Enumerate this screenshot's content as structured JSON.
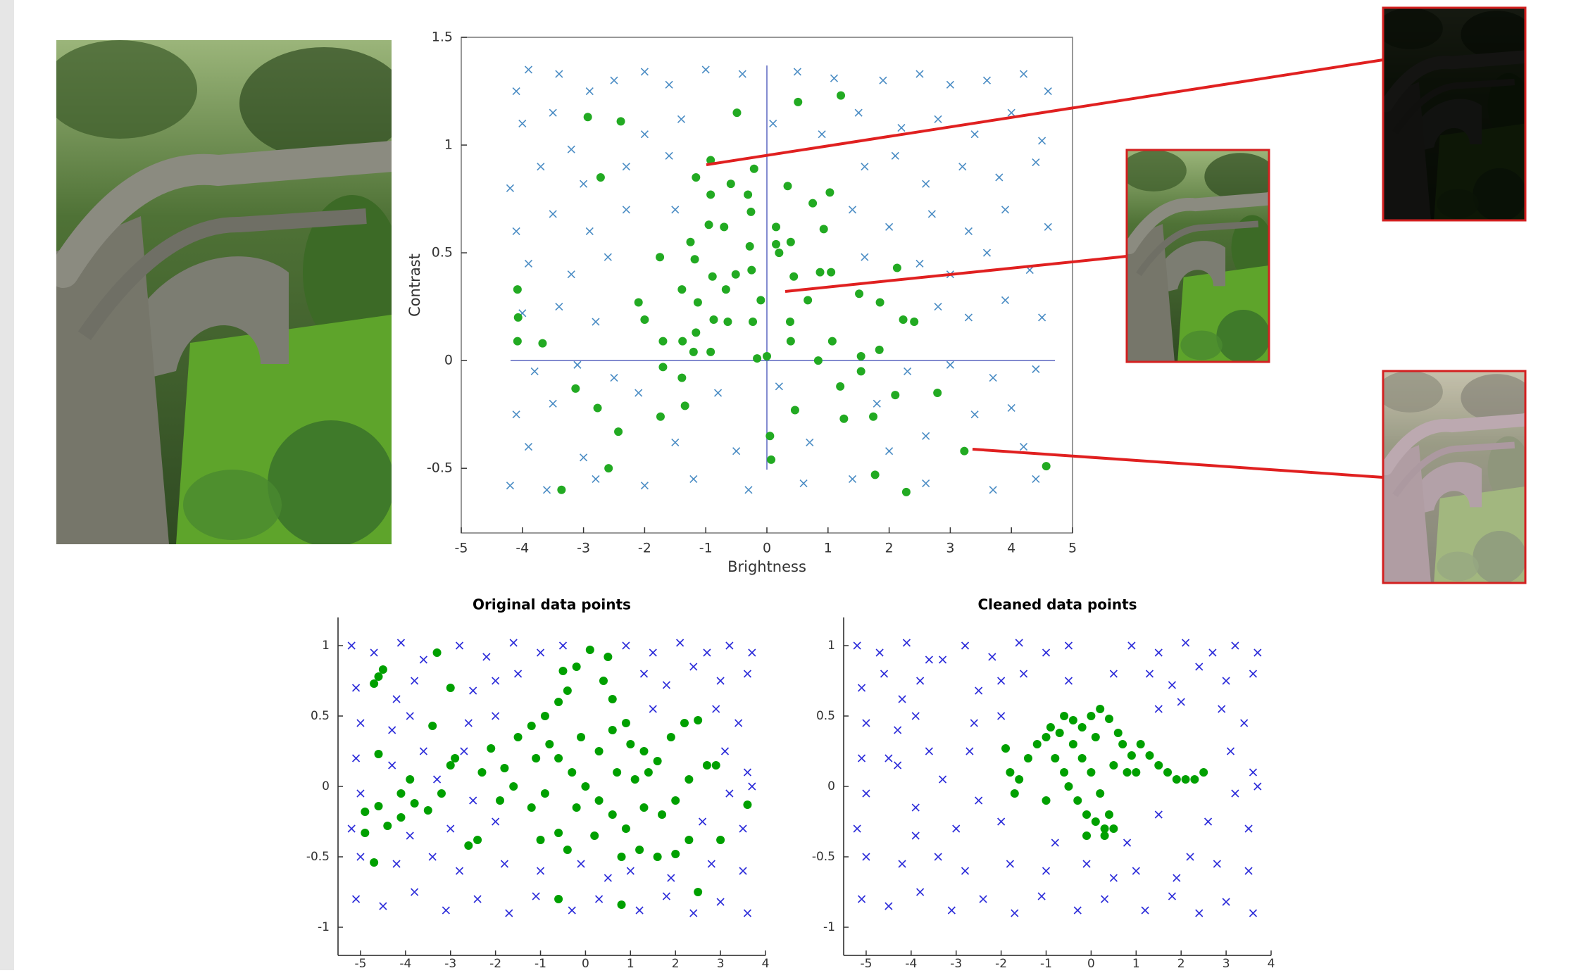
{
  "chart_data": [
    {
      "type": "scatter",
      "xlabel": "Brightness",
      "ylabel": "Contrast",
      "xlim": [
        -5,
        5
      ],
      "ylim": [
        -0.8,
        1.5
      ],
      "xticks": [
        -5,
        -4,
        -3,
        -2,
        -1,
        0,
        1,
        2,
        3,
        4,
        5
      ],
      "yticks": [
        -0.5,
        0,
        0.5,
        1,
        1.5
      ],
      "zero_lines": true,
      "box": true,
      "series": [
        {
          "marker": "x",
          "color": "#4a8cc4",
          "x": [
            -4.1,
            -3.9,
            -3.4,
            -2.9,
            -2.5,
            -2,
            -1.6,
            -1,
            -0.4,
            0.5,
            1.1,
            1.9,
            2.5,
            3,
            3.6,
            4.2,
            4.6,
            -4,
            -3.5,
            -3.2,
            -2,
            -1.4,
            0.1,
            0.9,
            1.5,
            2.2,
            2.8,
            3.4,
            4,
            4.5,
            -4.2,
            -3.7,
            -3,
            -2.3,
            -1.6,
            1.6,
            2.1,
            2.6,
            3.2,
            3.8,
            4.4,
            -4.1,
            -3.5,
            -2.9,
            -2.3,
            -1.5,
            1.4,
            2,
            2.7,
            3.3,
            3.9,
            4.6,
            -3.9,
            -3.2,
            -2.6,
            1.6,
            2.5,
            3,
            3.6,
            4.3,
            -4,
            -3.4,
            -2.8,
            2.8,
            3.3,
            3.9,
            4.5,
            -3.8,
            -3.1,
            -2.5,
            2.3,
            3,
            3.7,
            4.4,
            -4.1,
            -3.5,
            -2.1,
            -0.8,
            0.2,
            1.8,
            3.4,
            4,
            -3.9,
            -3,
            -1.5,
            -0.5,
            0.7,
            2,
            2.6,
            4.2,
            -4.2,
            -3.6,
            -2.8,
            -2,
            -1.2,
            -0.3,
            0.6,
            1.4,
            2.6,
            3.7,
            4.4
          ],
          "values": [
            1.25,
            1.35,
            1.33,
            1.25,
            1.3,
            1.34,
            1.28,
            1.35,
            1.33,
            1.34,
            1.31,
            1.3,
            1.33,
            1.28,
            1.3,
            1.33,
            1.25,
            1.1,
            1.15,
            0.98,
            1.05,
            1.12,
            1.1,
            1.05,
            1.15,
            1.08,
            1.12,
            1.05,
            1.15,
            1.02,
            0.8,
            0.9,
            0.82,
            0.9,
            0.95,
            0.9,
            0.95,
            0.82,
            0.9,
            0.85,
            0.92,
            0.6,
            0.68,
            0.6,
            0.7,
            0.7,
            0.7,
            0.62,
            0.68,
            0.6,
            0.7,
            0.62,
            0.45,
            0.4,
            0.48,
            0.48,
            0.45,
            0.4,
            0.5,
            0.42,
            0.22,
            0.25,
            0.18,
            0.25,
            0.2,
            0.28,
            0.2,
            -0.05,
            -0.02,
            -0.08,
            -0.05,
            -0.02,
            -0.08,
            -0.04,
            -0.25,
            -0.2,
            -0.15,
            -0.15,
            -0.12,
            -0.2,
            -0.25,
            -0.22,
            -0.4,
            -0.45,
            -0.38,
            -0.42,
            -0.38,
            -0.42,
            -0.35,
            -0.4,
            -0.58,
            -0.6,
            -0.55,
            -0.58,
            -0.55,
            -0.6,
            -0.57,
            -0.55,
            -0.57,
            -0.6,
            -0.55
          ]
        },
        {
          "marker": "o",
          "color": "#22aa22",
          "x": [
            -0.92,
            -1.16,
            -2.93,
            -2.39,
            -0.49,
            0.51,
            1.21,
            -2.72,
            -0.21,
            -0.59,
            0.34,
            -0.92,
            1.03,
            -0.31,
            0.75,
            -0.95,
            -0.7,
            -0.26,
            0.15,
            -1.25,
            0.15,
            0.39,
            0.93,
            -1.75,
            -1.18,
            -0.28,
            0.2,
            -0.89,
            -0.51,
            -0.25,
            0.87,
            1.05,
            2.13,
            0.44,
            -1.39,
            -0.67,
            -4.08,
            -2.1,
            -1.13,
            -0.1,
            0.67,
            1.51,
            1.85,
            -4.07,
            -2,
            -0.87,
            -0.64,
            -0.23,
            0.38,
            2.23,
            2.41,
            -1.16,
            -4.08,
            -3.67,
            -1.7,
            -1.38,
            0.39,
            1.07,
            1.84,
            -1.2,
            -0.92,
            -0.16,
            0,
            0.84,
            1.54,
            -1.7,
            1.54,
            -1.39,
            -3.13,
            1.2,
            2.1,
            2.79,
            -2.77,
            -1.34,
            0.46,
            -1.74,
            1.26,
            1.74,
            -2.43,
            0.05,
            0.07,
            3.23,
            -2.59,
            1.77,
            4.57,
            -3.36,
            2.28
          ],
          "values": [
            0.93,
            0.85,
            1.13,
            1.11,
            1.15,
            1.2,
            1.23,
            0.85,
            0.89,
            0.82,
            0.81,
            0.77,
            0.78,
            0.77,
            0.73,
            0.63,
            0.62,
            0.69,
            0.62,
            0.55,
            0.54,
            0.55,
            0.61,
            0.48,
            0.47,
            0.53,
            0.5,
            0.39,
            0.4,
            0.42,
            0.41,
            0.41,
            0.43,
            0.39,
            0.33,
            0.33,
            0.33,
            0.27,
            0.27,
            0.28,
            0.28,
            0.31,
            0.27,
            0.2,
            0.19,
            0.19,
            0.18,
            0.18,
            0.18,
            0.19,
            0.18,
            0.13,
            0.09,
            0.08,
            0.09,
            0.09,
            0.09,
            0.09,
            0.05,
            0.04,
            0.04,
            0.01,
            0.02,
            0,
            0.02,
            -0.03,
            -0.05,
            -0.08,
            -0.13,
            -0.12,
            -0.16,
            -0.15,
            -0.22,
            -0.21,
            -0.23,
            -0.26,
            -0.27,
            -0.26,
            -0.33,
            -0.35,
            -0.46,
            -0.42,
            -0.5,
            -0.53,
            -0.49,
            -0.6,
            -0.61
          ]
        }
      ]
    },
    {
      "type": "scatter",
      "title": "Original data points",
      "xlim": [
        -5.5,
        4
      ],
      "ylim": [
        -1.2,
        1.2
      ],
      "xticks": [
        -5,
        -4,
        -3,
        -2,
        -1,
        0,
        1,
        2,
        3,
        4
      ],
      "yticks": [
        -1,
        -0.5,
        0,
        0.5,
        1
      ],
      "series": [
        {
          "marker": "x",
          "color": "#2b2bd9",
          "x": [
            -5.2,
            -4.7,
            -4.1,
            -3.6,
            -2.8,
            -2.2,
            -1.6,
            -1,
            -0.5,
            0.9,
            1.5,
            2.1,
            2.7,
            3.2,
            3.7,
            -5.1,
            -4.2,
            -3.8,
            -2.5,
            -2,
            -1.5,
            1.3,
            1.8,
            2.4,
            3,
            3.6,
            -5,
            -4.3,
            -3.9,
            -2.6,
            -2,
            1.5,
            2.9,
            3.4,
            -5.1,
            -4.3,
            -3.6,
            -2.7,
            3.1,
            3.6,
            -5,
            -3.3,
            -2.5,
            3.2,
            3.7,
            -5.2,
            -3.9,
            -3,
            -2,
            2.6,
            3.5,
            -5,
            -4.2,
            -3.4,
            -2.8,
            -1.8,
            -1,
            -0.1,
            0.5,
            1,
            1.9,
            2.8,
            3.5,
            -5.1,
            -4.5,
            -3.8,
            -3.1,
            -2.4,
            -1.7,
            -1.1,
            -0.3,
            0.3,
            1.2,
            1.8,
            2.4,
            3,
            3.6
          ],
          "values": [
            1,
            0.95,
            1.02,
            0.9,
            1,
            0.92,
            1.02,
            0.95,
            1,
            1,
            0.95,
            1.02,
            0.95,
            1,
            0.95,
            0.7,
            0.62,
            0.75,
            0.68,
            0.75,
            0.8,
            0.8,
            0.72,
            0.85,
            0.75,
            0.8,
            0.45,
            0.4,
            0.5,
            0.45,
            0.5,
            0.55,
            0.55,
            0.45,
            0.2,
            0.15,
            0.25,
            0.25,
            0.25,
            0.1,
            -0.05,
            0.05,
            -0.1,
            -0.05,
            0,
            -0.3,
            -0.35,
            -0.3,
            -0.25,
            -0.25,
            -0.3,
            -0.5,
            -0.55,
            -0.5,
            -0.6,
            -0.55,
            -0.6,
            -0.55,
            -0.65,
            -0.6,
            -0.65,
            -0.55,
            -0.6,
            -0.8,
            -0.85,
            -0.75,
            -0.88,
            -0.8,
            -0.9,
            -0.78,
            -0.88,
            -0.8,
            -0.88,
            -0.78,
            -0.9,
            -0.82,
            -0.9
          ]
        },
        {
          "marker": "o",
          "color": "#00a000",
          "x": [
            -4.6,
            -4.5,
            -4.7,
            -3.3,
            -3,
            -3.4,
            -4.6,
            -3.9,
            -4.1,
            -4.6,
            -4.9,
            -4.9,
            -4.4,
            -4.1,
            -3.8,
            -3.5,
            -3.2,
            -4.7,
            -3,
            -2.9,
            -2.3,
            -2.1,
            -1.8,
            -1.6,
            -1.5,
            -1.2,
            -0.9,
            -0.6,
            -0.5,
            -0.4,
            -0.2,
            0.1,
            0.5,
            0.4,
            0.6,
            0.9,
            1,
            1.3,
            1.6,
            1.9,
            2.2,
            2.5,
            2.7,
            2.3,
            2,
            1.7,
            1.3,
            0.9,
            0.6,
            0.3,
            0,
            -0.3,
            -0.6,
            -0.9,
            -1.2,
            -1,
            -0.6,
            -0.4,
            0.2,
            0.8,
            1.2,
            1.6,
            2,
            2.3,
            3,
            2.5,
            0.8,
            -0.6,
            -2.4,
            -2.6,
            3.6,
            2.9,
            -1.9,
            0.7,
            1.1,
            -0.1,
            0.3,
            -0.8,
            -1.1,
            0.6,
            -0.2,
            1.4
          ],
          "values": [
            0.78,
            0.83,
            0.73,
            0.95,
            0.7,
            0.43,
            0.23,
            0.05,
            -0.05,
            -0.14,
            -0.18,
            -0.33,
            -0.28,
            -0.22,
            -0.12,
            -0.17,
            -0.05,
            -0.54,
            0.15,
            0.2,
            0.1,
            0.27,
            0.13,
            0,
            0.35,
            0.43,
            0.5,
            0.6,
            0.82,
            0.68,
            0.85,
            0.97,
            0.92,
            0.75,
            0.62,
            0.45,
            0.3,
            0.25,
            0.18,
            0.35,
            0.45,
            0.47,
            0.15,
            0.05,
            -0.1,
            -0.2,
            -0.15,
            -0.3,
            -0.2,
            -0.1,
            0,
            0.1,
            0.2,
            -0.05,
            -0.15,
            -0.38,
            -0.33,
            -0.45,
            -0.35,
            -0.5,
            -0.45,
            -0.5,
            -0.48,
            -0.38,
            -0.38,
            -0.75,
            -0.84,
            -0.8,
            -0.38,
            -0.42,
            -0.13,
            0.15,
            -0.1,
            0.1,
            0.05,
            0.35,
            0.25,
            0.3,
            0.2,
            0.4,
            -0.15,
            0.1
          ]
        }
      ]
    },
    {
      "type": "scatter",
      "title": "Cleaned data points",
      "xlim": [
        -5.5,
        4
      ],
      "ylim": [
        -1.2,
        1.2
      ],
      "xticks": [
        -5,
        -4,
        -3,
        -2,
        -1,
        0,
        1,
        2,
        3,
        4
      ],
      "yticks": [
        -1,
        -0.5,
        0,
        0.5,
        1
      ],
      "series": [
        {
          "marker": "x",
          "color": "#2b2bd9",
          "x": [
            -5.2,
            -4.7,
            -4.1,
            -3.6,
            -2.8,
            -2.2,
            -1.6,
            -1,
            -0.5,
            0.9,
            1.5,
            2.1,
            2.7,
            3.2,
            3.7,
            -5.1,
            -4.2,
            -3.8,
            -2.5,
            -2,
            -1.5,
            1.3,
            1.8,
            2.4,
            3,
            3.6,
            -5,
            -4.3,
            -3.9,
            -2.6,
            -2,
            1.5,
            2.9,
            3.4,
            -5.1,
            -4.3,
            -3.6,
            -2.7,
            3.1,
            3.6,
            -5,
            -3.3,
            -2.5,
            3.2,
            3.7,
            -5.2,
            -3.9,
            -3,
            -2,
            2.6,
            3.5,
            -5,
            -4.2,
            -3.4,
            -2.8,
            -1.8,
            -1,
            -0.1,
            0.5,
            1,
            1.9,
            2.8,
            3.5,
            -5.1,
            -4.5,
            -3.8,
            -3.1,
            -2.4,
            -1.7,
            -1.1,
            -0.3,
            0.3,
            1.2,
            1.8,
            2.4,
            3,
            3.6,
            -4.6,
            -3.3,
            -4.5,
            -3.9,
            1.5,
            2.2,
            -0.8,
            0.8,
            2,
            -0.5,
            0.5
          ],
          "values": [
            1,
            0.95,
            1.02,
            0.9,
            1,
            0.92,
            1.02,
            0.95,
            1,
            1,
            0.95,
            1.02,
            0.95,
            1,
            0.95,
            0.7,
            0.62,
            0.75,
            0.68,
            0.75,
            0.8,
            0.8,
            0.72,
            0.85,
            0.75,
            0.8,
            0.45,
            0.4,
            0.5,
            0.45,
            0.5,
            0.55,
            0.55,
            0.45,
            0.2,
            0.15,
            0.25,
            0.25,
            0.25,
            0.1,
            -0.05,
            0.05,
            -0.1,
            -0.05,
            0,
            -0.3,
            -0.35,
            -0.3,
            -0.25,
            -0.25,
            -0.3,
            -0.5,
            -0.55,
            -0.5,
            -0.6,
            -0.55,
            -0.6,
            -0.55,
            -0.65,
            -0.6,
            -0.65,
            -0.55,
            -0.6,
            -0.8,
            -0.85,
            -0.75,
            -0.88,
            -0.8,
            -0.9,
            -0.78,
            -0.88,
            -0.8,
            -0.88,
            -0.78,
            -0.9,
            -0.82,
            -0.9,
            0.8,
            0.9,
            0.2,
            -0.15,
            -0.2,
            -0.5,
            -0.4,
            -0.4,
            0.6,
            0.75,
            0.8
          ]
        },
        {
          "marker": "o",
          "color": "#00a000",
          "x": [
            -1.9,
            -1.8,
            -1.7,
            -1.6,
            -1.4,
            -1.2,
            -1,
            -0.9,
            -0.6,
            -0.4,
            -0.2,
            0,
            0.2,
            0.4,
            0.6,
            0.7,
            0.9,
            1.1,
            1.3,
            1.5,
            1.7,
            1.9,
            2.1,
            2.3,
            2.5,
            -0.8,
            -0.6,
            -0.5,
            -0.3,
            -0.1,
            0.1,
            0.3,
            0.4,
            0.2,
            0,
            -0.2,
            0.5,
            0.8,
            1,
            -0.4,
            -1,
            0.1,
            -0.7,
            0.3,
            0.5,
            -0.1
          ],
          "values": [
            0.27,
            0.1,
            -0.05,
            0.05,
            0.2,
            0.3,
            0.35,
            0.42,
            0.5,
            0.47,
            0.42,
            0.5,
            0.55,
            0.48,
            0.38,
            0.3,
            0.22,
            0.3,
            0.22,
            0.15,
            0.1,
            0.05,
            0.05,
            0.05,
            0.1,
            0.2,
            0.1,
            0,
            -0.1,
            -0.2,
            -0.25,
            -0.3,
            -0.2,
            -0.05,
            0.1,
            0.2,
            0.15,
            0.1,
            0.1,
            0.3,
            -0.1,
            0.35,
            0.38,
            -0.35,
            -0.3,
            -0.35
          ]
        }
      ]
    }
  ]
}
